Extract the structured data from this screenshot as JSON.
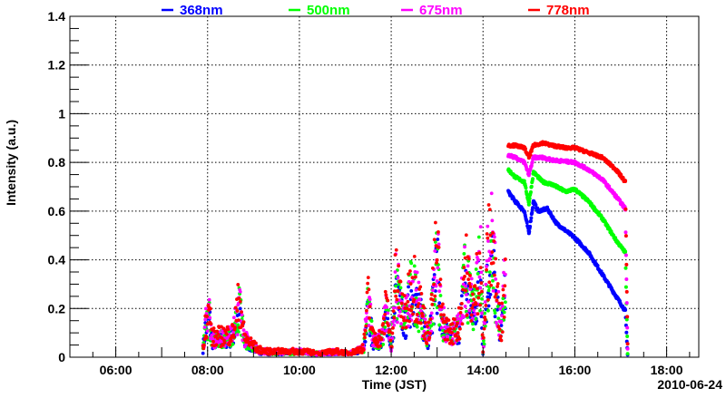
{
  "chart_data": {
    "type": "scatter",
    "title": "",
    "xlabel": "Time (JST)",
    "ylabel": "Intensity (a.u.)",
    "date_label": "2010-06-24",
    "xlim": [
      5,
      18.7
    ],
    "ylim": [
      0,
      1.4
    ],
    "grid": true,
    "legend_placement": "top",
    "x_ticks": [
      {
        "v": 6,
        "label": "06:00"
      },
      {
        "v": 8,
        "label": "08:00"
      },
      {
        "v": 10,
        "label": "10:00"
      },
      {
        "v": 12,
        "label": "12:00"
      },
      {
        "v": 14,
        "label": "14:00"
      },
      {
        "v": 16,
        "label": "16:00"
      },
      {
        "v": 18,
        "label": "18:00"
      }
    ],
    "y_ticks": [
      {
        "v": 0,
        "label": "0"
      },
      {
        "v": 0.2,
        "label": "0.2"
      },
      {
        "v": 0.4,
        "label": "0.4"
      },
      {
        "v": 0.6,
        "label": "0.6"
      },
      {
        "v": 0.8,
        "label": "0.8"
      },
      {
        "v": 1,
        "label": "1"
      },
      {
        "v": 1.2,
        "label": "1.2"
      },
      {
        "v": 1.4,
        "label": "1.4"
      }
    ],
    "noisy_until": 14.5,
    "series": [
      {
        "name": "368nm",
        "color": "#0000ff",
        "scale": 0.8,
        "points": [
          [
            14.55,
            0.68
          ],
          [
            14.7,
            0.64
          ],
          [
            14.9,
            0.6
          ],
          [
            15.0,
            0.51
          ],
          [
            15.1,
            0.64
          ],
          [
            15.2,
            0.6
          ],
          [
            15.4,
            0.61
          ],
          [
            15.6,
            0.55
          ],
          [
            16.0,
            0.49
          ],
          [
            16.3,
            0.43
          ],
          [
            16.6,
            0.34
          ],
          [
            16.9,
            0.25
          ],
          [
            17.1,
            0.19
          ],
          [
            17.15,
            0.01
          ]
        ]
      },
      {
        "name": "500nm",
        "color": "#00ff00",
        "scale": 0.88,
        "points": [
          [
            14.55,
            0.77
          ],
          [
            14.7,
            0.74
          ],
          [
            14.9,
            0.72
          ],
          [
            15.0,
            0.63
          ],
          [
            15.1,
            0.76
          ],
          [
            15.3,
            0.72
          ],
          [
            15.5,
            0.71
          ],
          [
            15.8,
            0.68
          ],
          [
            16.0,
            0.69
          ],
          [
            16.3,
            0.64
          ],
          [
            16.6,
            0.57
          ],
          [
            16.9,
            0.48
          ],
          [
            17.1,
            0.43
          ],
          [
            17.15,
            0.02
          ]
        ]
      },
      {
        "name": "675nm",
        "color": "#ff00ff",
        "scale": 0.94,
        "points": [
          [
            14.55,
            0.83
          ],
          [
            14.7,
            0.82
          ],
          [
            14.9,
            0.8
          ],
          [
            15.0,
            0.75
          ],
          [
            15.1,
            0.82
          ],
          [
            15.3,
            0.82
          ],
          [
            15.5,
            0.81
          ],
          [
            16.0,
            0.8
          ],
          [
            16.3,
            0.77
          ],
          [
            16.6,
            0.73
          ],
          [
            16.9,
            0.66
          ],
          [
            17.1,
            0.61
          ],
          [
            17.15,
            0.03
          ]
        ]
      },
      {
        "name": "778nm",
        "color": "#ff0000",
        "scale": 1.0,
        "points": [
          [
            14.55,
            0.87
          ],
          [
            14.7,
            0.87
          ],
          [
            14.9,
            0.86
          ],
          [
            15.0,
            0.82
          ],
          [
            15.1,
            0.87
          ],
          [
            15.3,
            0.88
          ],
          [
            15.5,
            0.87
          ],
          [
            15.8,
            0.86
          ],
          [
            16.0,
            0.86
          ],
          [
            16.3,
            0.84
          ],
          [
            16.6,
            0.82
          ],
          [
            16.9,
            0.77
          ],
          [
            17.1,
            0.72
          ],
          [
            17.15,
            0.05
          ]
        ]
      }
    ],
    "noisy_points": [
      [
        7.9,
        0.05
      ],
      [
        7.95,
        0.18
      ],
      [
        8.05,
        0.22
      ],
      [
        8.1,
        0.1
      ],
      [
        8.55,
        0.12
      ],
      [
        8.7,
        0.3
      ],
      [
        8.8,
        0.1
      ],
      [
        9.1,
        0.04
      ],
      [
        9.3,
        0.03
      ],
      [
        9.7,
        0.03
      ],
      [
        10.1,
        0.03
      ],
      [
        10.4,
        0.02
      ],
      [
        10.8,
        0.03
      ],
      [
        11.1,
        0.02
      ],
      [
        11.4,
        0.05
      ],
      [
        11.5,
        0.3
      ],
      [
        11.6,
        0.1
      ],
      [
        11.8,
        0.1
      ],
      [
        11.9,
        0.28
      ],
      [
        12.0,
        0.05
      ],
      [
        12.1,
        0.4
      ],
      [
        12.3,
        0.2
      ],
      [
        12.45,
        0.42
      ],
      [
        12.6,
        0.3
      ],
      [
        12.8,
        0.1
      ],
      [
        13.0,
        0.55
      ],
      [
        13.1,
        0.2
      ],
      [
        13.3,
        0.12
      ],
      [
        13.5,
        0.18
      ],
      [
        13.6,
        0.47
      ],
      [
        13.8,
        0.25
      ],
      [
        13.95,
        0.55
      ],
      [
        14.0,
        0.02
      ],
      [
        14.1,
        0.5
      ],
      [
        14.2,
        0.62
      ],
      [
        14.3,
        0.3
      ],
      [
        14.4,
        0.15
      ],
      [
        14.5,
        0.5
      ]
    ]
  }
}
